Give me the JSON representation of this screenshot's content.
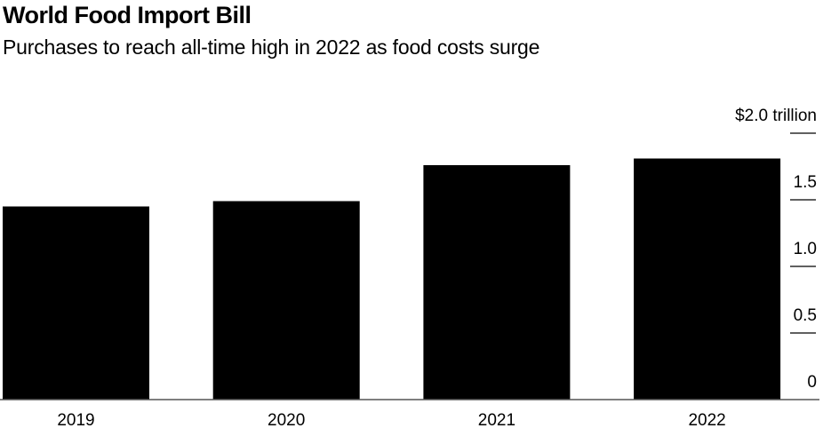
{
  "chart_data": {
    "type": "bar",
    "title": "World Food Import Bill",
    "subtitle": "Purchases to reach all-time high in 2022 as food costs surge",
    "categories": [
      "2019",
      "2020",
      "2021",
      "2022"
    ],
    "values": [
      1.45,
      1.49,
      1.76,
      1.81
    ],
    "unit": "trillion USD",
    "xlabel": "",
    "ylabel": "",
    "ylim": [
      0,
      2.0
    ],
    "yticks": [
      0,
      0.5,
      1.0,
      1.5,
      2.0
    ],
    "ytick_labels": [
      "0",
      "0.5",
      "1.0",
      "1.5",
      "$2.0 trillion"
    ],
    "y_axis_side": "right",
    "bar_color": "#000000",
    "grid": false,
    "legend": "none"
  }
}
